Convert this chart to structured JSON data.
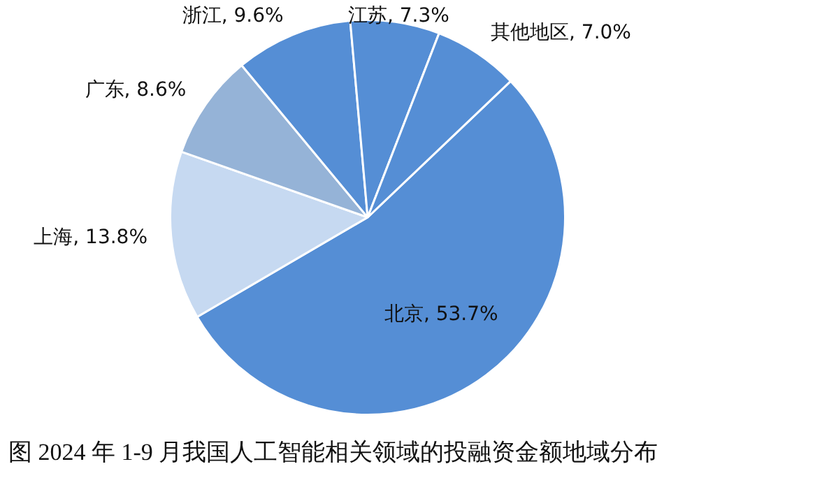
{
  "chart_data": {
    "type": "pie",
    "title": "图 2024 年 1-9 月我国人工智能相关领域的投融资金额地域分布",
    "categories": [
      "北京",
      "上海",
      "广东",
      "浙江",
      "江苏",
      "其他地区"
    ],
    "values": [
      53.7,
      13.8,
      8.6,
      9.6,
      7.3,
      7.0
    ],
    "colors": [
      "#558ed5",
      "#c6d9f1",
      "#95b3d7",
      "#558ed5",
      "#558ed5",
      "#558ed5"
    ],
    "value_labels": [
      "53.7%",
      "13.8%",
      "8.6%",
      "9.6%",
      "7.3%",
      "7.0%"
    ],
    "legend": false
  }
}
